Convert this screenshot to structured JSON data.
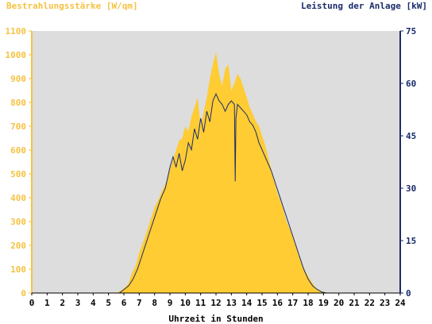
{
  "chart_data": {
    "type": "area",
    "title_left": "Bestrahlungsstärke [W/qm]",
    "title_right": "Leistung der Anlage [kW]",
    "xlabel": "Uhrzeit in Stunden",
    "xlim": [
      0,
      24
    ],
    "ylim_left": [
      0,
      1100
    ],
    "ylim_right": [
      0,
      75
    ],
    "x_ticks": [
      0,
      1,
      2,
      3,
      4,
      5,
      6,
      7,
      8,
      9,
      10,
      11,
      12,
      13,
      14,
      15,
      16,
      17,
      18,
      19,
      20,
      21,
      22,
      23,
      24
    ],
    "left_ticks": [
      0,
      100,
      200,
      300,
      400,
      500,
      600,
      700,
      800,
      900,
      1000,
      1100
    ],
    "right_ticks": [
      0,
      15,
      30,
      45,
      60,
      75
    ],
    "grid": false,
    "colors": {
      "irradiance": "#ffcc33",
      "power": "#1a2b6b",
      "plot_bg": "#dddddd",
      "left_axis": "#f5c242",
      "right_axis": "#1a2b6b"
    },
    "series": [
      {
        "name": "Bestrahlungsstärke",
        "axis": "left",
        "x": [
          0,
          5.5,
          5.8,
          6.0,
          6.3,
          6.5,
          6.8,
          7.0,
          7.3,
          7.5,
          7.8,
          8.0,
          8.3,
          8.5,
          8.8,
          9.0,
          9.2,
          9.4,
          9.6,
          9.8,
          10.0,
          10.2,
          10.4,
          10.6,
          10.8,
          11.0,
          11.2,
          11.4,
          11.6,
          11.8,
          12.0,
          12.2,
          12.4,
          12.6,
          12.8,
          13.0,
          13.2,
          13.4,
          13.6,
          13.8,
          14.0,
          14.2,
          14.4,
          14.6,
          14.8,
          15.0,
          15.2,
          15.4,
          15.6,
          15.8,
          16.0,
          16.3,
          16.6,
          17.0,
          17.3,
          17.6,
          18.0,
          18.3,
          18.6,
          19.0,
          19.3,
          19.6,
          24
        ],
        "values": [
          0,
          0,
          10,
          20,
          40,
          80,
          120,
          170,
          220,
          260,
          320,
          360,
          400,
          430,
          470,
          520,
          560,
          600,
          640,
          650,
          700,
          680,
          740,
          780,
          820,
          700,
          760,
          820,
          900,
          960,
          1010,
          920,
          870,
          940,
          960,
          850,
          880,
          920,
          900,
          860,
          820,
          780,
          750,
          720,
          700,
          660,
          620,
          570,
          520,
          470,
          420,
          370,
          300,
          240,
          180,
          120,
          70,
          40,
          15,
          5,
          0,
          0,
          0
        ]
      },
      {
        "name": "Leistung der Anlage",
        "axis": "right",
        "x": [
          0,
          5.7,
          6.0,
          6.3,
          6.6,
          6.9,
          7.2,
          7.5,
          7.8,
          8.1,
          8.4,
          8.7,
          9.0,
          9.2,
          9.4,
          9.6,
          9.8,
          10.0,
          10.2,
          10.4,
          10.6,
          10.8,
          11.0,
          11.2,
          11.4,
          11.6,
          11.8,
          12.0,
          12.2,
          12.4,
          12.6,
          12.8,
          13.0,
          13.2,
          13.25,
          13.3,
          13.4,
          13.6,
          13.8,
          14.0,
          14.2,
          14.4,
          14.6,
          14.8,
          15.0,
          15.3,
          15.6,
          15.9,
          16.2,
          16.5,
          16.8,
          17.1,
          17.4,
          17.7,
          18.0,
          18.3,
          18.6,
          18.9,
          19.2,
          19.5,
          24
        ],
        "values": [
          0,
          0,
          1,
          2,
          4,
          7,
          11,
          15,
          19,
          23,
          27,
          30,
          36,
          39,
          36,
          40,
          35,
          38,
          43,
          41,
          47,
          44,
          50,
          46,
          52,
          49,
          55,
          57,
          55,
          54,
          52,
          54,
          55,
          54,
          32,
          50,
          54,
          53,
          52,
          51,
          49,
          48,
          46,
          43,
          41,
          38,
          35,
          31,
          27,
          23,
          19,
          15,
          11,
          7,
          4,
          2,
          1,
          0.3,
          0,
          0,
          0
        ]
      }
    ]
  }
}
